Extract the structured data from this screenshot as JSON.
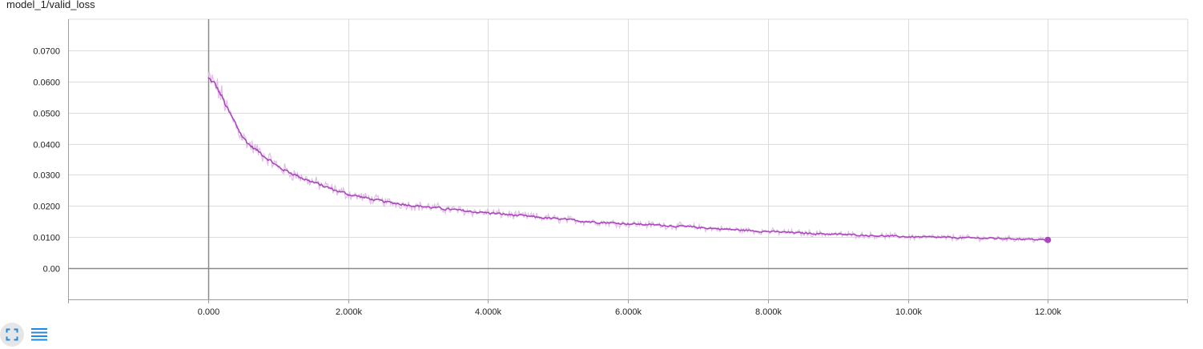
{
  "chart_title": "model_1/valid_loss",
  "toolbar": {
    "fit_icon": "fit-domain-icon",
    "log_icon": "toggle-log-scale-icon"
  },
  "colors": {
    "series_main": "#ab47bc",
    "series_raw": "#e1bee7",
    "grid": "#dcdcdc",
    "axis": "#9e9e9e",
    "zero_axis": "#8a8a8a",
    "toolbar_icon": "#1e88e5"
  },
  "chart_data": {
    "type": "line",
    "title": "model_1/valid_loss",
    "xlabel": "",
    "ylabel": "",
    "xlim": [
      -2000,
      14000
    ],
    "ylim": [
      -0.01,
      0.08
    ],
    "x_ticks": [
      0,
      2000,
      4000,
      6000,
      8000,
      10000,
      12000
    ],
    "x_tick_labels": [
      "0.000",
      "2.000k",
      "4.000k",
      "6.000k",
      "8.000k",
      "10.00k",
      "12.00k"
    ],
    "y_ticks": [
      0,
      0.01,
      0.02,
      0.03,
      0.04,
      0.05,
      0.06,
      0.07
    ],
    "y_tick_labels": [
      "0.00",
      "0.0100",
      "0.0200",
      "0.0300",
      "0.0400",
      "0.0500",
      "0.0600",
      "0.0700"
    ],
    "grid": true,
    "series": [
      {
        "x": [
          0,
          100,
          200,
          300,
          400,
          500,
          600,
          700,
          800,
          900,
          1000,
          1200,
          1400,
          1600,
          1800,
          2000,
          2250,
          2500,
          2750,
          3000,
          3250,
          3500,
          3750,
          4000,
          4500,
          5000,
          5500,
          6000,
          6500,
          7000,
          7500,
          8000,
          8500,
          9000,
          9500,
          10000,
          10500,
          11000,
          11500,
          12000
        ],
        "values": [
          0.061,
          0.059,
          0.055,
          0.05,
          0.046,
          0.042,
          0.0395,
          0.0378,
          0.0362,
          0.0345,
          0.0325,
          0.0305,
          0.0285,
          0.0268,
          0.0252,
          0.0238,
          0.0226,
          0.0214,
          0.0207,
          0.02,
          0.0194,
          0.0188,
          0.0182,
          0.0178,
          0.0168,
          0.0158,
          0.0149,
          0.0143,
          0.0138,
          0.0131,
          0.0124,
          0.0118,
          0.0113,
          0.0109,
          0.0105,
          0.0101,
          0.0099,
          0.0097,
          0.0095,
          0.0091
        ]
      }
    ]
  }
}
